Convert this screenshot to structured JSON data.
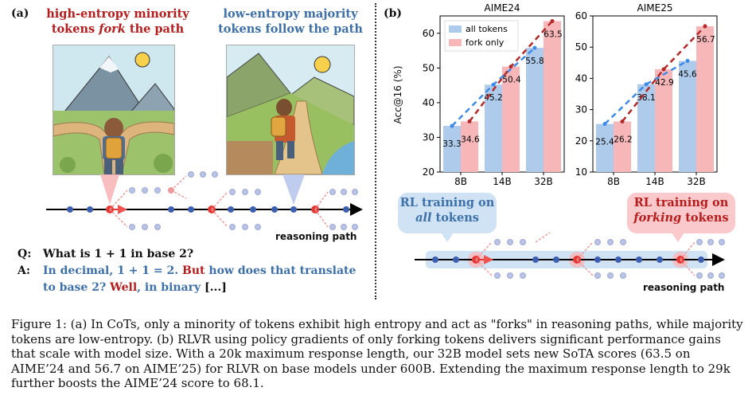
{
  "panel_a": {
    "label": "(a)",
    "left_heading_1": "high-entropy minority",
    "left_heading_2a": "tokens ",
    "left_heading_2b": "fork",
    "left_heading_2c": " the path",
    "right_heading_1": "low-entropy majority",
    "right_heading_2": "tokens follow the path",
    "axis_label": "reasoning path",
    "q_label": "Q:",
    "q_text": "What is 1 + 1 in base 2?",
    "a_label": "A:",
    "a_line1_blue": "In decimal, 1 + 1 = 2. ",
    "a_line1_red": "But",
    "a_line1_blue2": " how does that translate",
    "a_line2_blue": "to base 2? ",
    "a_line2_red": "Well",
    "a_line2_blue2": ", in binary ",
    "a_line2_black": "[...]"
  },
  "panel_b": {
    "label": "(b)",
    "ylabel": "Acc@16 (%)",
    "bubble_all_1": "RL training on",
    "bubble_all_2": "all",
    "bubble_all_3": " tokens",
    "bubble_fork_1": "RL training on",
    "bubble_fork_2": "forking",
    "bubble_fork_3": " tokens",
    "axis_label": "reasoning path"
  },
  "colors": {
    "red_text": "#b71c1c",
    "blue_text": "#3d6fa8",
    "bar_all": "#aecbec",
    "bar_fork": "#f7b6b8",
    "line_all": "#3d8be8",
    "line_fork": "#b52828"
  },
  "chart_data": [
    {
      "type": "bar",
      "title": "AIME24",
      "categories": [
        "8B",
        "14B",
        "32B"
      ],
      "series": [
        {
          "name": "all tokens",
          "values": [
            33.3,
            45.2,
            55.8
          ]
        },
        {
          "name": "fork only",
          "values": [
            34.6,
            50.4,
            63.5
          ]
        }
      ],
      "ylim": [
        20,
        65
      ],
      "yticks": [
        "20",
        "30",
        "40",
        "50",
        "60"
      ],
      "yticks_values": [
        20,
        30,
        40,
        50,
        60
      ],
      "ylabel": "Acc@16 (%)",
      "legend": "top-left",
      "value_labels_all": [
        "33.3",
        "45.2",
        "55.8"
      ],
      "value_labels_fork": [
        "34.6",
        "50.4",
        "63.5"
      ]
    },
    {
      "type": "bar",
      "title": "AIME25",
      "categories": [
        "8B",
        "14B",
        "32B"
      ],
      "series": [
        {
          "name": "all tokens",
          "values": [
            25.4,
            38.1,
            45.6
          ]
        },
        {
          "name": "fork only",
          "values": [
            26.2,
            42.9,
            56.7
          ]
        }
      ],
      "ylim": [
        10,
        60
      ],
      "yticks": [
        "10",
        "20",
        "30",
        "40",
        "50",
        "60"
      ],
      "yticks_values": [
        10,
        20,
        30,
        40,
        50,
        60
      ],
      "value_labels_all": [
        "25.4",
        "38.1",
        "45.6"
      ],
      "value_labels_fork": [
        "26.2",
        "42.9",
        "56.7"
      ]
    }
  ],
  "caption": {
    "text": "Figure 1: (a) In CoTs, only a minority of tokens exhibit high entropy and act as \"forks\" in reasoning paths, while majority tokens are low-entropy. (b) RLVR using policy gradients of only forking tokens delivers significant performance gains that scale with model size. With a 20k maximum response length, our 32B model sets new SoTA scores (63.5 on AIME’24 and 56.7 on AIME’25) for RLVR on base models under 600B. Extending the maximum response length to 29k further boosts the AIME’24 score to 68.1."
  }
}
